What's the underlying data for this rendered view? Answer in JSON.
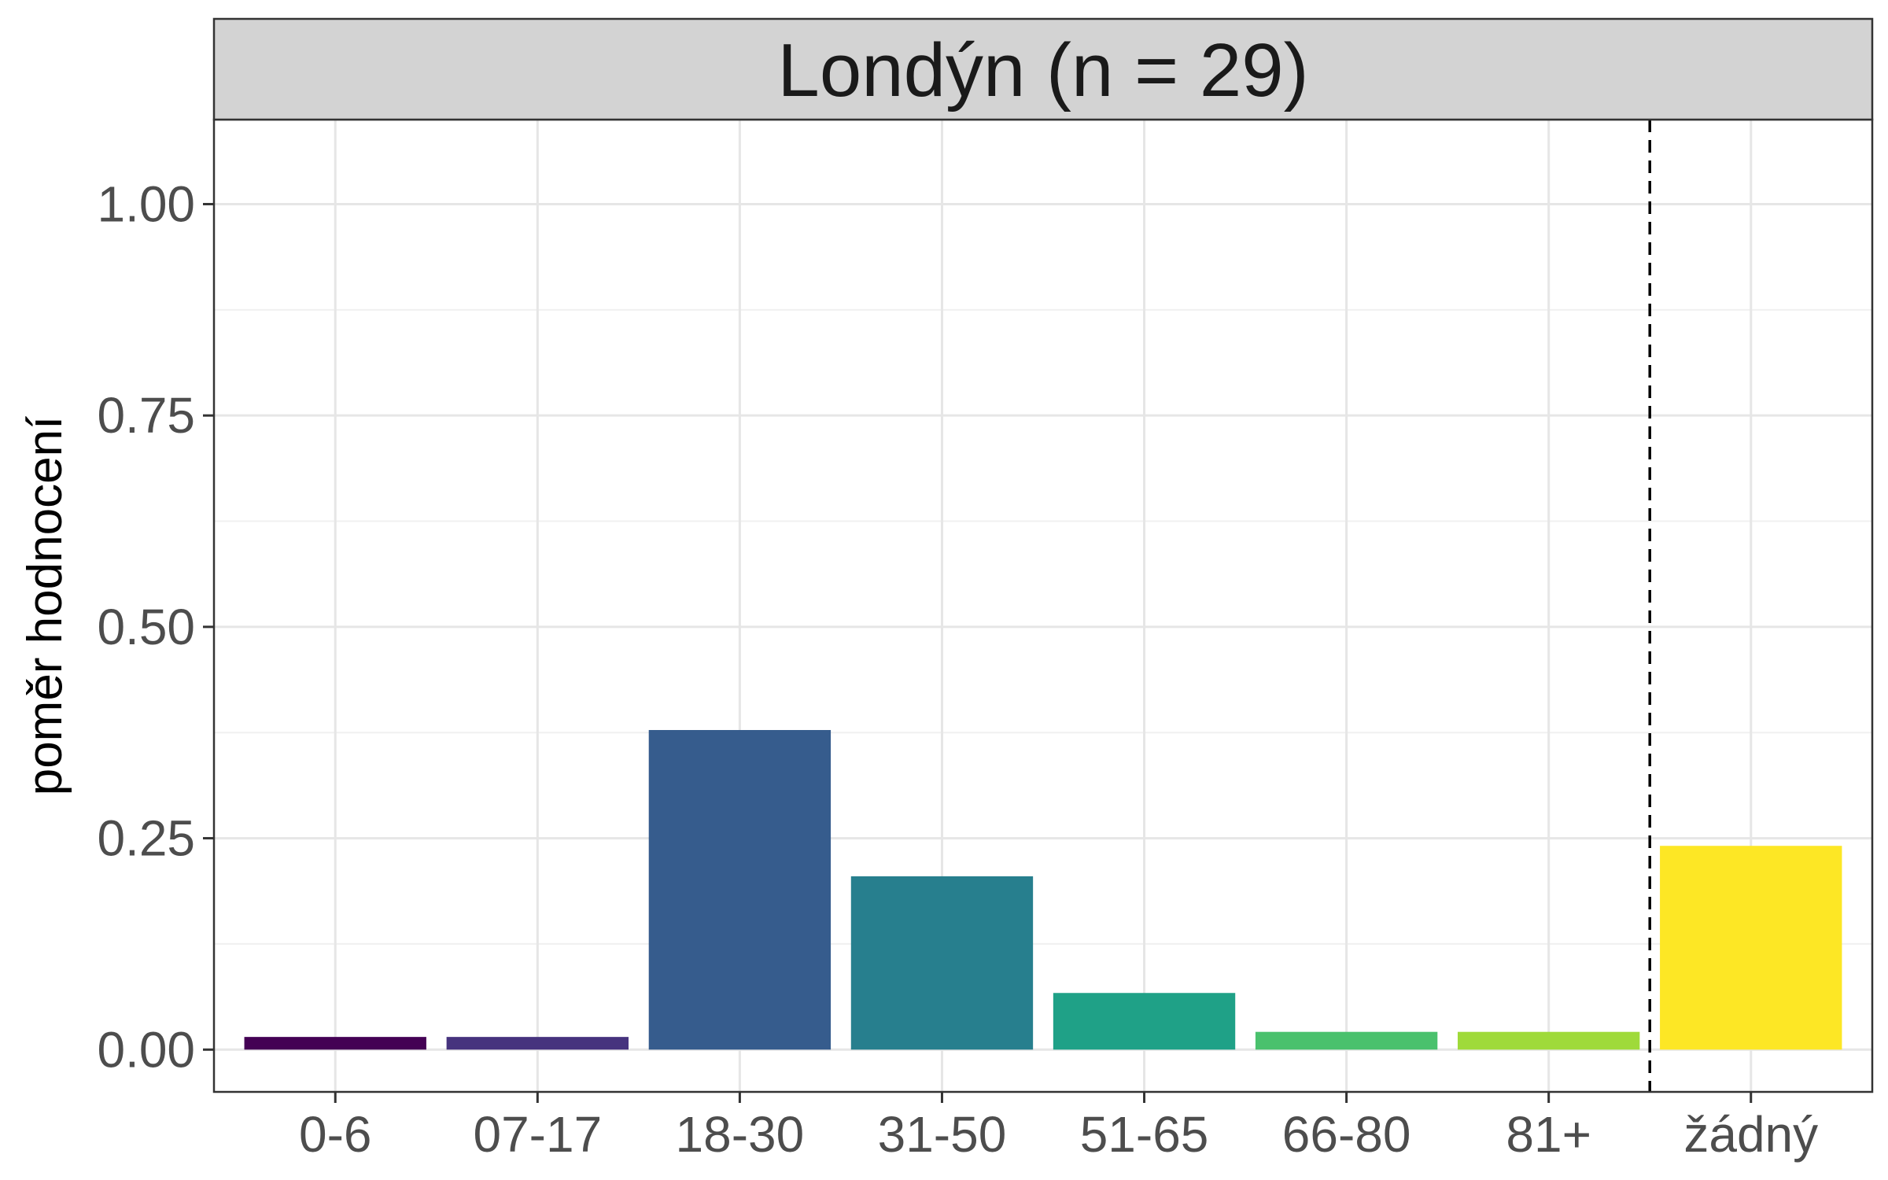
{
  "chart_data": {
    "type": "bar",
    "title": "Londýn (n = 29)",
    "xlabel": "",
    "ylabel": "poměr hodnocení",
    "categories": [
      "0-6",
      "07-17",
      "18-30",
      "31-50",
      "51-65",
      "66-80",
      "81+",
      "žádný"
    ],
    "values": [
      0.015,
      0.015,
      0.378,
      0.205,
      0.067,
      0.021,
      0.021,
      0.241
    ],
    "colors": [
      "#440154",
      "#46337E",
      "#365C8D",
      "#277F8E",
      "#1FA187",
      "#4AC16D",
      "#9FDA3A",
      "#FDE725"
    ],
    "ylim": [
      -0.05,
      1.1
    ],
    "yticks": [
      0,
      0.25,
      0.5,
      0.75,
      1.0
    ],
    "ytick_labels": [
      "0.00",
      "0.25",
      "0.50",
      "0.75",
      "1.00"
    ],
    "separator_after_category": "81+",
    "separator_style": "dashed",
    "grid": true,
    "legend": "none"
  }
}
